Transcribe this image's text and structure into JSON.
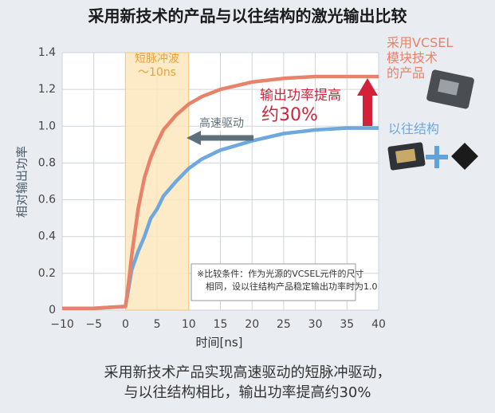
{
  "chart_data": {
    "type": "line",
    "title": "采用新技术的产品与以往结构的激光输出比较",
    "x_label": "时间[ns]",
    "y_label": "相对输出功率",
    "x": [
      -10,
      -5,
      0,
      0.5,
      1,
      2,
      3,
      4,
      5,
      6,
      8,
      10,
      12,
      15,
      20,
      25,
      30,
      35,
      40
    ],
    "series": [
      {
        "name": "采用VCSEL\n模块技术\n的产品",
        "color": "#e8836a",
        "values": [
          0.01,
          0.01,
          0.02,
          0.15,
          0.3,
          0.55,
          0.72,
          0.83,
          0.91,
          0.98,
          1.06,
          1.12,
          1.16,
          1.2,
          1.24,
          1.26,
          1.27,
          1.27,
          1.27
        ]
      },
      {
        "name": "以往结构",
        "color": "#6fa8dc",
        "values": [
          0.01,
          0.01,
          0.02,
          0.12,
          0.22,
          0.32,
          0.4,
          0.5,
          0.55,
          0.62,
          0.7,
          0.77,
          0.82,
          0.87,
          0.92,
          0.96,
          0.98,
          0.99,
          0.99
        ]
      }
    ],
    "xlim": [
      -10,
      40
    ],
    "ylim": [
      0,
      1.4
    ],
    "xticks": [
      {
        "value": -10,
        "label": "−10"
      },
      {
        "value": -5,
        "label": "−5"
      },
      0,
      5,
      10,
      15,
      20,
      25,
      30,
      35,
      40
    ],
    "yticks": [
      0,
      0.2,
      0.4,
      0.6,
      0.8,
      {
        "value": 1,
        "label": "1.0"
      },
      1.2,
      1.4
    ],
    "grid": true,
    "shaded_region": {
      "x": [
        0,
        10
      ],
      "label": "短脉冲波\n～10ns"
    },
    "annotations": {
      "drive": "高速驱动",
      "gain": "输出功率提高",
      "gain_pct": "约30%",
      "note": "※比较条件：作为光源的VCSEL元件的尺寸\n　相同，设以往结构产品稳定输出功率时为1.0"
    },
    "caption": "采用新技术产品实现高速驱动的短脉冲驱动，\n与以往结构相比，输出功率提高约30%"
  }
}
